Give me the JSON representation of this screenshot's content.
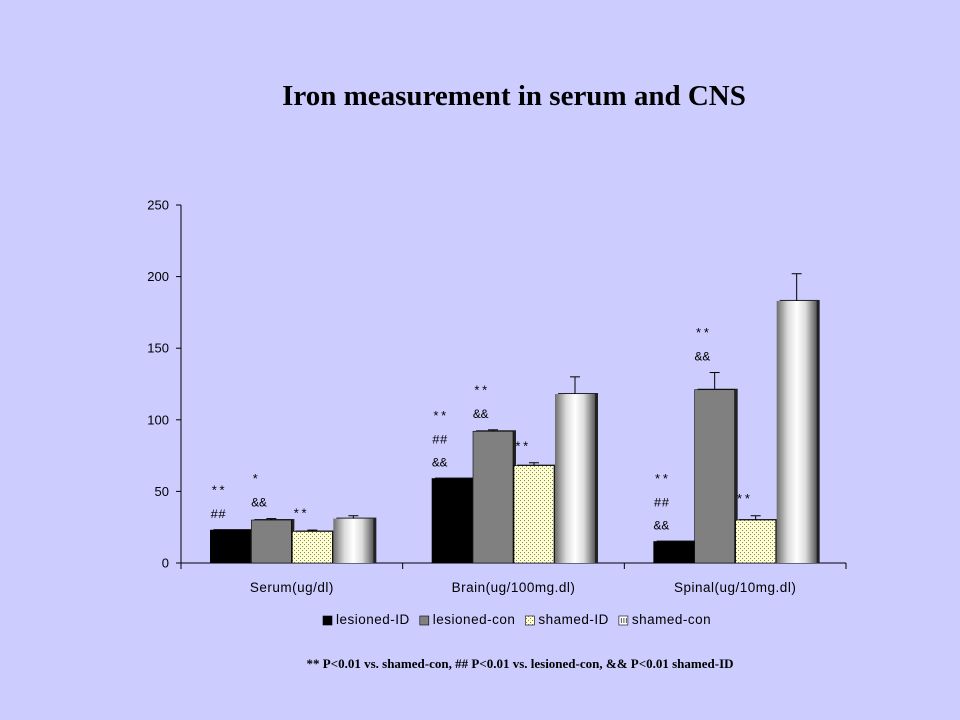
{
  "slide": {
    "title": "Iron measurement in serum and CNS",
    "footnote": "** P<0.01 vs. shamed-con,  ## P<0.01 vs. lesioned-con, && P<0.01 shamed-ID"
  },
  "chart_data": {
    "type": "bar",
    "title": "Iron measurement in serum and CNS",
    "xlabel": "",
    "ylabel": "",
    "ylim": [
      0,
      250
    ],
    "yticks": [
      0,
      50,
      100,
      150,
      200,
      250
    ],
    "grid": false,
    "legend_position": "bottom",
    "categories": [
      "Serum(ug/dl)",
      "Brain(ug/100mg.dl)",
      "Spinal(ug/10mg.dl)"
    ],
    "series": [
      {
        "name": "lesioned-ID",
        "values": [
          23,
          59,
          15
        ],
        "errors": [
          0,
          0,
          0
        ],
        "color": "#000000"
      },
      {
        "name": "lesioned-con",
        "values": [
          30,
          92,
          121
        ],
        "errors": [
          1,
          1,
          12
        ],
        "color": "#808080"
      },
      {
        "name": "shamed-ID",
        "values": [
          22,
          68,
          30
        ],
        "errors": [
          1,
          2,
          3
        ],
        "color": "#ffffcc"
      },
      {
        "name": "shamed-con",
        "values": [
          31,
          118,
          183
        ],
        "errors": [
          2,
          12,
          19
        ],
        "color": "#d8d8d8"
      }
    ],
    "annotations": [
      {
        "category": 0,
        "series": 0,
        "lines": [
          "**",
          "##"
        ]
      },
      {
        "category": 0,
        "series": 1,
        "lines": [
          "*",
          "&&"
        ]
      },
      {
        "category": 0,
        "series": 2,
        "lines": [
          "**"
        ]
      },
      {
        "category": 1,
        "series": 0,
        "lines": [
          "**",
          "##",
          "&&"
        ]
      },
      {
        "category": 1,
        "series": 1,
        "lines": [
          "**",
          "&&"
        ]
      },
      {
        "category": 1,
        "series": 2,
        "lines": [
          "**"
        ]
      },
      {
        "category": 2,
        "series": 0,
        "lines": [
          "**",
          "##",
          "&&"
        ]
      },
      {
        "category": 2,
        "series": 1,
        "lines": [
          "**",
          "&&"
        ]
      },
      {
        "category": 2,
        "series": 2,
        "lines": [
          "**"
        ]
      }
    ]
  }
}
